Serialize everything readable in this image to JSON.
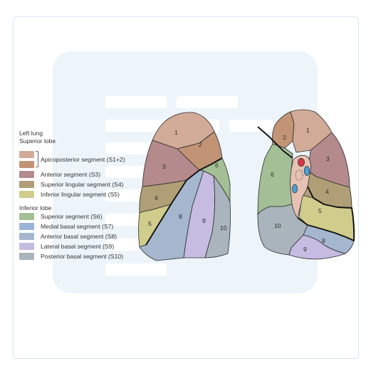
{
  "legend": {
    "title": "Left lung",
    "superior_lobe": "Superior lobe",
    "inferior_lobe": "Inferior lobe",
    "superior_items": [
      {
        "label": "Apicoposterior segment (S1+2)",
        "colors": [
          "#d1ab98",
          "#c29476"
        ]
      },
      {
        "label": "Anterior segment (S3)",
        "color": "#b48a8c"
      },
      {
        "label": "Superior lingular segment (S4)",
        "color": "#b09e77"
      },
      {
        "label": "Inferior lingular segment (S5)",
        "color": "#cfcc8c"
      }
    ],
    "inferior_items": [
      {
        "label": "Superior segment (S6)",
        "color": "#a3bf95"
      },
      {
        "label": "Medial basal segment (S7)",
        "color": "#9db4d9"
      },
      {
        "label": "Anterior basal segment (S8)",
        "color": "#a5b7cf"
      },
      {
        "label": "Lateral basal segment (S9)",
        "color": "#c6bbe1"
      },
      {
        "label": "Posterior basal segment (S10)",
        "color": "#a9b4bc"
      }
    ]
  },
  "lateral_view": {
    "labels": [
      "1",
      "2",
      "3",
      "4",
      "5",
      "6",
      "8",
      "9",
      "10"
    ]
  },
  "medial_view": {
    "labels": [
      "1",
      "2",
      "3",
      "4",
      "5",
      "6",
      "8",
      "9",
      "10"
    ]
  },
  "colors": {
    "s1": "#d1ab98",
    "s2": "#c29476",
    "s3": "#b48a8c",
    "s4": "#b09e77",
    "s5": "#cfcc8c",
    "s6": "#a3bf95",
    "s7": "#9db4d9",
    "s8": "#a5b7cf",
    "s9": "#c6bbe1",
    "s10": "#a9b4bc",
    "hilum": "#e6c2b3",
    "artery": "#d7364a",
    "vein": "#4aa0d6",
    "watermark": "#eef5fa"
  }
}
